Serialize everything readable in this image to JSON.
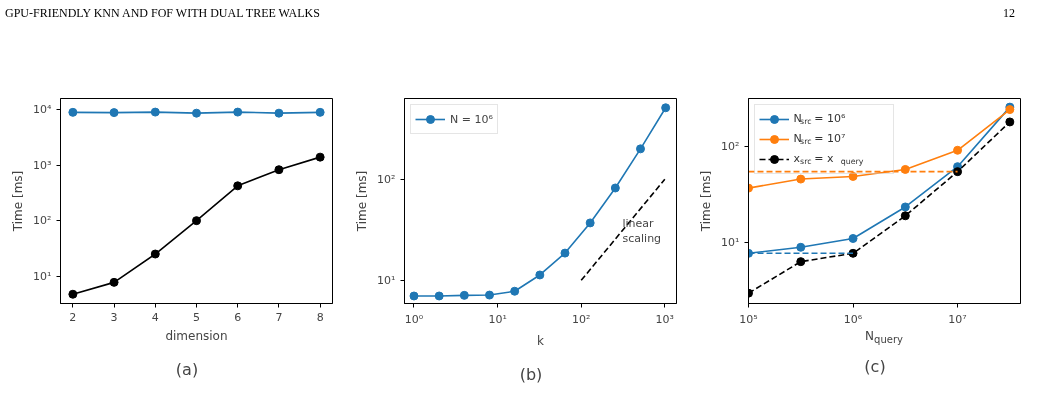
{
  "chart_data": [
    {
      "type": "line",
      "xlabel": "dimension",
      "ylabel": "Time [ms]",
      "log": "y",
      "grid": false,
      "legend": false,
      "marker": "circle",
      "x": [
        2,
        3,
        4,
        5,
        6,
        7,
        8
      ],
      "xlim": [
        1.7,
        8.3
      ],
      "xticks": [
        2,
        3,
        4,
        5,
        6,
        7,
        8
      ],
      "ylim": [
        3.2,
        16000
      ],
      "yticks": [
        {
          "value": 10,
          "label": "10¹"
        },
        {
          "value": 100,
          "label": "10²"
        },
        {
          "value": 1000,
          "label": "10³"
        },
        {
          "value": 10000,
          "label": "10⁴"
        }
      ],
      "series": [
        {
          "color": "#1f77b4",
          "values": [
            9000,
            8900,
            9100,
            8700,
            9100,
            8700,
            9000
          ]
        },
        {
          "color": "#000000",
          "values": [
            4.7,
            7.7,
            25,
            100,
            425,
            830,
            1400
          ]
        }
      ],
      "annotations": [
        "GPU-FRIENDLY KNN AND FOF WITH DUAL TREE WALKS",
        "(a)"
      ]
    },
    {
      "type": "line",
      "xlabel": "k",
      "ylabel": "Time [ms]",
      "log": "xy",
      "grid": false,
      "legend": "top left",
      "marker": "circle",
      "x": [
        1,
        2,
        4,
        8,
        16,
        32,
        64,
        128,
        256,
        512,
        1024
      ],
      "xlim": [
        0.77,
        1380
      ],
      "xticks": [
        {
          "value": 1,
          "label": "10⁰"
        },
        {
          "value": 10,
          "label": "10¹"
        },
        {
          "value": 100,
          "label": "10²"
        },
        {
          "value": 1000,
          "label": "10³"
        }
      ],
      "ylim": [
        5.9,
        630
      ],
      "yticks": [
        {
          "value": 10,
          "label": "10¹"
        },
        {
          "value": 100,
          "label": "10²"
        }
      ],
      "series": [
        {
          "name": "N = 10⁶",
          "color": "#1f77b4",
          "values": [
            7.0,
            7.0,
            7.1,
            7.15,
            7.8,
            11.3,
            18.6,
            37,
            82,
            200,
            510
          ]
        },
        {
          "type": "line",
          "color": "#000000",
          "line_style": "dashed",
          "marker": "none",
          "x": [
            100,
            1000
          ],
          "values": [
            10,
            100
          ]
        }
      ],
      "annotations": [
        "(b)",
        "linear\nscaling"
      ]
    },
    {
      "type": "line",
      "xlabel": "N$_{query}$",
      "ylabel": "Time [ms]",
      "log": "xy",
      "grid": false,
      "legend": "top left",
      "marker": "circle",
      "x": [
        100000,
        316228,
        1000000,
        3162278,
        10000000,
        31622777
      ],
      "xlim": [
        100000,
        40000000
      ],
      "xticks": [
        {
          "value": 100000,
          "label": "10⁵"
        },
        {
          "value": 1000000,
          "label": "10⁶"
        },
        {
          "value": 10000000,
          "label": "10⁷"
        }
      ],
      "ylim": [
        2.3,
        320
      ],
      "yticks": [
        {
          "value": 10,
          "label": "10¹"
        },
        {
          "value": 100,
          "label": "10²"
        }
      ],
      "series": [
        {
          "name": "N$_{src}$ = 10⁶",
          "color": "#1f77b4",
          "values": [
            7.7,
            8.9,
            11,
            23.5,
            62,
            260
          ]
        },
        {
          "name": "N$_{src}$ = 10⁷",
          "color": "#ff7f0e",
          "values": [
            37,
            46,
            49,
            58,
            92,
            245
          ]
        },
        {
          "name": "x$_{src}$ = x$_{query}$",
          "color": "#000000",
          "line_style": "dashed",
          "values": [
            2.95,
            6.3,
            7.7,
            19,
            55,
            182
          ]
        },
        {
          "color": "#ff7f0e",
          "line_style": "dashed",
          "marker": "none",
          "x": [
            100000,
            10000000
          ],
          "values": [
            55,
            55
          ]
        },
        {
          "color": "#1f77b4",
          "line_style": "dashed",
          "marker": "none",
          "x": [
            100000,
            1000000
          ],
          "values": [
            7.7,
            7.7
          ]
        }
      ],
      "annotations": [
        "(c)",
        "12"
      ]
    }
  ]
}
